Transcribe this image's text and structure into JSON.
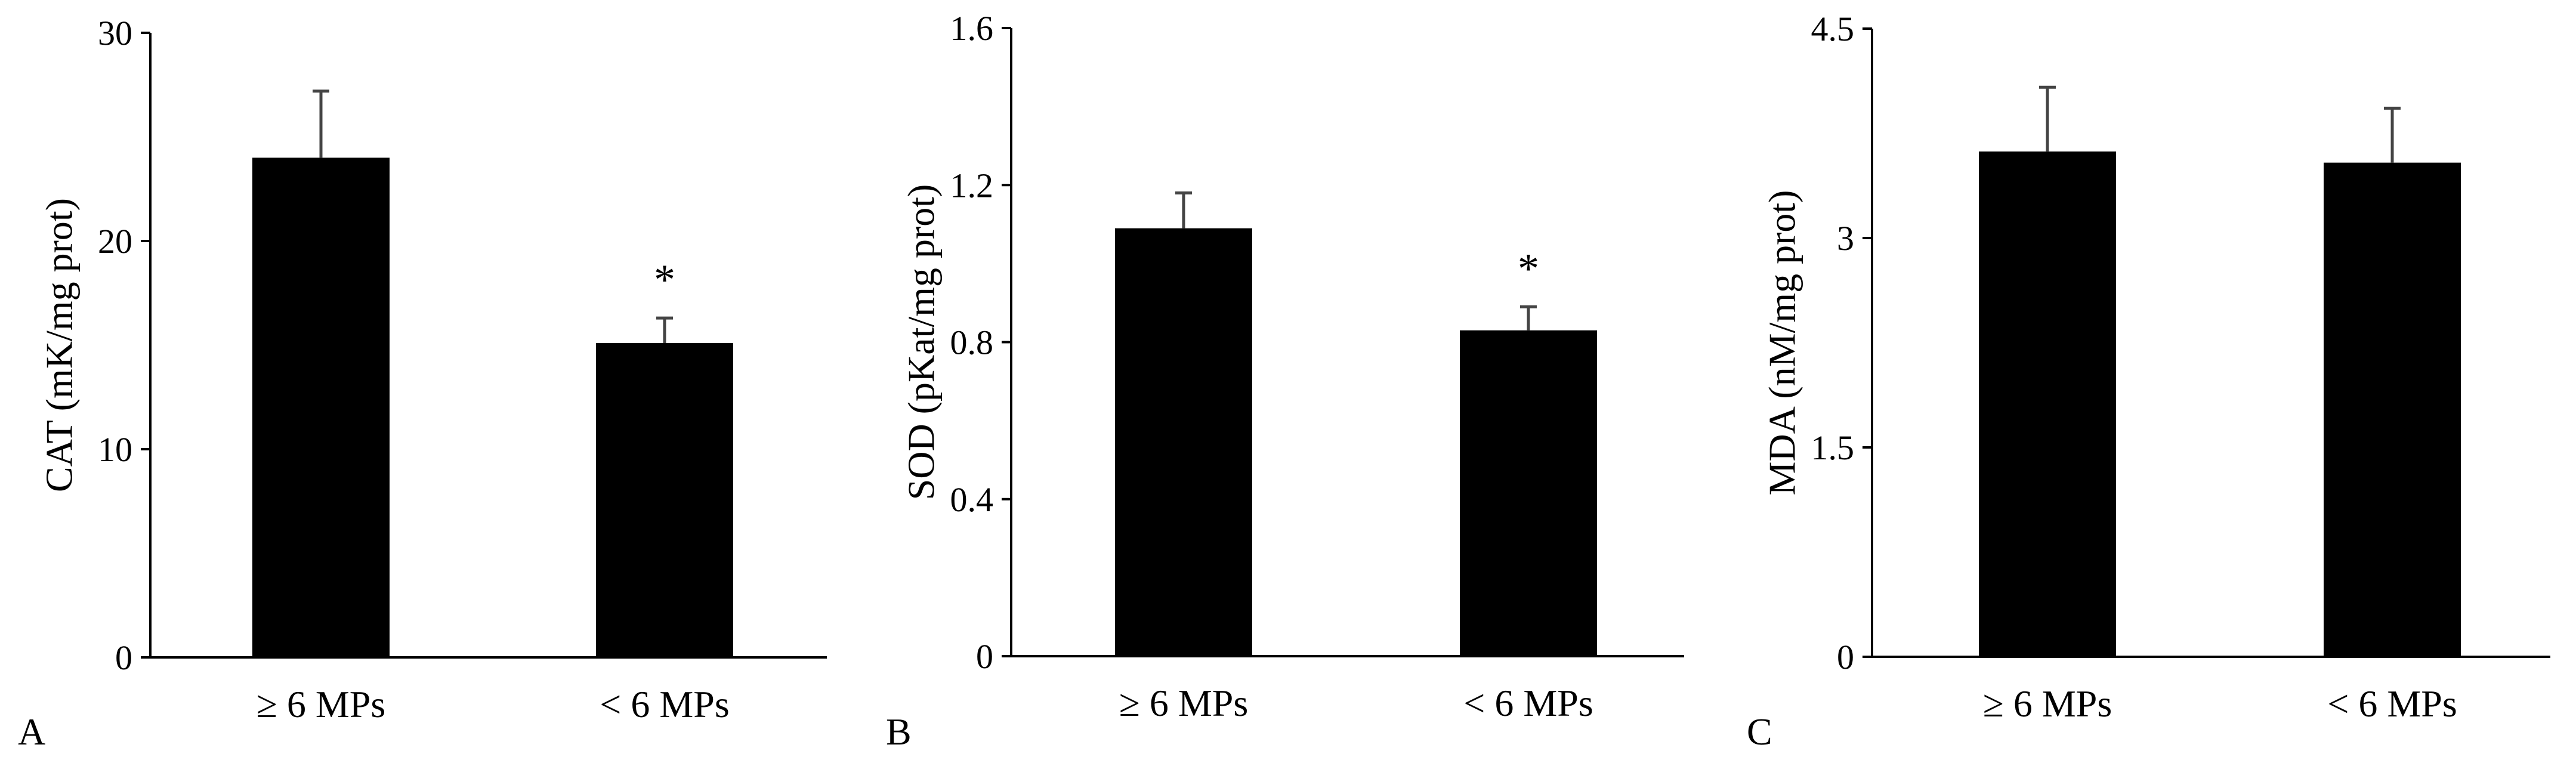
{
  "colors": {
    "bar": "#000000",
    "axis": "#000000",
    "error_bar": "#444444",
    "background": "#ffffff"
  },
  "chart_data": [
    {
      "panel": "A",
      "type": "bar",
      "categories": [
        "≥ 6 MPs",
        "< 6 MPs"
      ],
      "values": [
        24.0,
        15.1
      ],
      "errors": [
        3.2,
        1.2
      ],
      "significance": [
        "",
        "*"
      ],
      "ylabel": "CAT (mK/mg prot)",
      "xlabel": "",
      "title": "",
      "ylim": [
        0,
        30
      ],
      "yticks": [
        0,
        10,
        20,
        30
      ],
      "ytick_labels": [
        "0",
        "10",
        "20",
        "30"
      ],
      "grid": false,
      "legend": "none"
    },
    {
      "panel": "B",
      "type": "bar",
      "categories": [
        "≥ 6 MPs",
        "< 6 MPs"
      ],
      "values": [
        1.09,
        0.83
      ],
      "errors": [
        0.09,
        0.06
      ],
      "significance": [
        "",
        "*"
      ],
      "ylabel": "SOD (pKat/mg prot)",
      "xlabel": "",
      "title": "",
      "ylim": [
        0,
        1.6
      ],
      "yticks": [
        0,
        0.4,
        0.8,
        1.2,
        1.6
      ],
      "ytick_labels": [
        "0",
        "0.4",
        "0.8",
        "1.2",
        "1.6"
      ],
      "grid": false,
      "legend": "none"
    },
    {
      "panel": "C",
      "type": "bar",
      "categories": [
        "≥ 6 MPs",
        "< 6 MPs"
      ],
      "values": [
        3.62,
        3.54
      ],
      "errors": [
        0.46,
        0.39
      ],
      "significance": [
        "",
        ""
      ],
      "ylabel": "MDA (nM/mg prot)",
      "xlabel": "",
      "title": "",
      "ylim": [
        0,
        4.5
      ],
      "yticks": [
        0,
        1.5,
        3,
        4.5
      ],
      "ytick_labels": [
        "0",
        "1.5",
        "3",
        "4.5"
      ],
      "grid": false,
      "legend": "none"
    }
  ]
}
